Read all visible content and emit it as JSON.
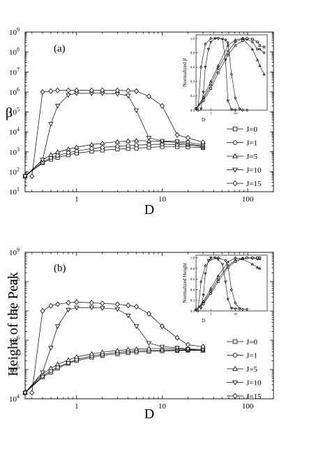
{
  "chart_data": [
    {
      "type": "line",
      "panel_label": "(a)",
      "xlabel": "D",
      "ylabel": "β",
      "x_scale": "log",
      "y_scale": "log",
      "xlim": [
        0.25,
        200
      ],
      "ylim": [
        10,
        1000000000
      ],
      "x_ticks": [
        1,
        10,
        100
      ],
      "x_tick_labels": [
        "1",
        "10",
        "100"
      ],
      "y_tick_exponents": [
        "1",
        "2",
        "3",
        "4",
        "5",
        "6",
        "7",
        "8",
        "9"
      ],
      "y_tick_base": "10",
      "legend_title": "",
      "legend_position": "right",
      "series": [
        {
          "name": "J=0",
          "marker": "square",
          "x": [
            0.25,
            0.4,
            0.5,
            0.6,
            0.8,
            1,
            1.5,
            2,
            3,
            4,
            5,
            7,
            10,
            15,
            20,
            30
          ],
          "y": [
            60,
            280,
            420,
            520,
            700,
            860,
            1050,
            1200,
            1350,
            1450,
            1500,
            1650,
            1800,
            1800,
            1750,
            1600
          ]
        },
        {
          "name": "J=1",
          "marker": "circle",
          "x": [
            0.25,
            0.4,
            0.5,
            0.6,
            0.8,
            1,
            1.5,
            2,
            3,
            4,
            5,
            7,
            10,
            15,
            20,
            30
          ],
          "y": [
            60,
            300,
            500,
            650,
            900,
            1100,
            1450,
            1650,
            1900,
            2050,
            2150,
            2300,
            2400,
            2300,
            2200,
            1800
          ]
        },
        {
          "name": "J=5",
          "marker": "triangle-up",
          "x": [
            0.25,
            0.4,
            0.5,
            0.6,
            0.8,
            1,
            1.5,
            2,
            3,
            4,
            5,
            7,
            10,
            15,
            20,
            30
          ],
          "y": [
            60,
            380,
            700,
            950,
            1350,
            1700,
            2300,
            2700,
            3200,
            3500,
            3600,
            3500,
            3300,
            2900,
            2500,
            1900
          ]
        },
        {
          "name": "J=10",
          "marker": "triangle-down",
          "x": [
            0.25,
            0.4,
            0.5,
            0.6,
            0.8,
            1,
            1.5,
            2,
            3,
            4,
            5,
            7,
            10,
            15,
            20,
            30
          ],
          "y": [
            60,
            400,
            25000,
            200000,
            700000,
            850000,
            850000,
            850000,
            800000,
            650000,
            120000,
            5000,
            3500,
            3300,
            3000,
            2200
          ]
        },
        {
          "name": "J=15",
          "marker": "diamond",
          "x": [
            0.3,
            0.4,
            0.5,
            0.6,
            0.8,
            1,
            1.5,
            2,
            3,
            4,
            5,
            7,
            10,
            15,
            20,
            30
          ],
          "y": [
            60,
            1000000,
            1100000,
            1200000,
            1200000,
            1200000,
            1200000,
            1200000,
            1200000,
            1150000,
            1100000,
            600000,
            200000,
            7000,
            5000,
            3000
          ]
        }
      ],
      "inset": {
        "ylabel": "Normalized β",
        "xlabel": "D",
        "x_ticks": [
          1,
          10
        ],
        "x_tick_labels": [
          "1",
          "10"
        ],
        "y_ticks": [
          0.0,
          0.2,
          0.4,
          0.6,
          0.8,
          1.0
        ],
        "y_tick_labels": [
          "0.0",
          "0.2",
          "0.4",
          "0.6",
          "0.8",
          "1.0"
        ],
        "xlim": [
          0.25,
          200
        ],
        "ylim": [
          0,
          1.05
        ],
        "series": [
          {
            "marker": "triangle-down",
            "x": [
              0.4,
              0.5,
              0.6,
              0.8,
              1,
              1.5,
              2,
              3,
              4,
              5,
              7,
              10
            ],
            "y": [
              0.02,
              0.25,
              0.6,
              0.85,
              0.95,
              1.0,
              1.0,
              0.99,
              0.7,
              0.13,
              0.01,
              0.0
            ]
          },
          {
            "marker": "diamond",
            "x": [
              0.3,
              0.4,
              0.6,
              1,
              2,
              4,
              5,
              7,
              10,
              15,
              20,
              30
            ],
            "y": [
              0.0,
              0.6,
              0.92,
              1.0,
              1.0,
              0.98,
              0.94,
              0.5,
              0.17,
              0.02,
              0.0,
              0.0
            ]
          },
          {
            "marker": "circle",
            "x": [
              0.25,
              0.5,
              1,
              2,
              5,
              10,
              20,
              30,
              50,
              80,
              100,
              150
            ],
            "y": [
              0.02,
              0.15,
              0.35,
              0.58,
              0.82,
              0.95,
              1.0,
              0.99,
              0.95,
              0.85,
              0.85,
              0.8
            ]
          },
          {
            "marker": "square",
            "x": [
              0.25,
              0.5,
              1,
              2,
              5,
              10,
              20,
              30,
              50,
              80,
              100,
              150
            ],
            "y": [
              0.02,
              0.13,
              0.3,
              0.52,
              0.77,
              0.9,
              0.97,
              1.0,
              0.99,
              0.95,
              0.9,
              0.88
            ]
          },
          {
            "marker": "triangle-up",
            "x": [
              0.25,
              0.5,
              1,
              2,
              5,
              10,
              20,
              50,
              80,
              100,
              150
            ],
            "y": [
              0.02,
              0.18,
              0.4,
              0.62,
              0.9,
              0.98,
              1.0,
              0.85,
              0.7,
              0.62,
              0.5
            ]
          }
        ]
      }
    },
    {
      "type": "line",
      "panel_label": "(b)",
      "xlabel": "D",
      "ylabel": "Height of the Peak",
      "x_scale": "log",
      "y_scale": "log",
      "xlim": [
        0.25,
        200
      ],
      "ylim": [
        10000,
        1000000000
      ],
      "x_ticks": [
        1,
        10,
        100
      ],
      "x_tick_labels": [
        "1",
        "10",
        "100"
      ],
      "y_tick_exponents": [
        "4",
        "5",
        "6",
        "7",
        "8",
        "9"
      ],
      "y_tick_base": "10",
      "legend_position": "right",
      "series": [
        {
          "name": "J=0",
          "marker": "square",
          "x": [
            0.25,
            0.4,
            0.5,
            0.6,
            0.8,
            1,
            1.5,
            2,
            3,
            4,
            5,
            7,
            10,
            15,
            20,
            30
          ],
          "y": [
            16000,
            55000,
            80000,
            110000,
            160000,
            200000,
            260000,
            300000,
            340000,
            370000,
            390000,
            410000,
            430000,
            440000,
            450000,
            450000
          ]
        },
        {
          "name": "J=1",
          "marker": "circle",
          "x": [
            0.25,
            0.4,
            0.5,
            0.6,
            0.8,
            1,
            1.5,
            2,
            3,
            4,
            5,
            7,
            10,
            15,
            20,
            30
          ],
          "y": [
            16000,
            60000,
            90000,
            120000,
            170000,
            220000,
            290000,
            330000,
            380000,
            410000,
            430000,
            450000,
            460000,
            460000,
            460000,
            450000
          ]
        },
        {
          "name": "J=5",
          "marker": "triangle-up",
          "x": [
            0.25,
            0.4,
            0.5,
            0.6,
            0.8,
            1,
            1.5,
            2,
            3,
            4,
            5,
            7,
            10,
            15,
            20,
            30
          ],
          "y": [
            16000,
            70000,
            110000,
            150000,
            210000,
            270000,
            340000,
            390000,
            440000,
            480000,
            500000,
            520000,
            520000,
            500000,
            480000,
            450000
          ]
        },
        {
          "name": "J=10",
          "marker": "triangle-down",
          "x": [
            0.25,
            0.4,
            0.5,
            0.6,
            0.8,
            1,
            1.5,
            2,
            3,
            4,
            5,
            7,
            10,
            15,
            20,
            30
          ],
          "y": [
            16000,
            80000,
            550000,
            3000000,
            11000000,
            13000000,
            13000000,
            12500000,
            11500000,
            7000000,
            3000000,
            800000,
            600000,
            550000,
            500000,
            480000
          ]
        },
        {
          "name": "J=15",
          "marker": "diamond",
          "x": [
            0.3,
            0.4,
            0.5,
            0.6,
            0.8,
            1,
            1.5,
            2,
            3,
            4,
            5,
            7,
            10,
            15,
            20,
            30
          ],
          "y": [
            16000,
            10000000,
            15000000,
            17000000,
            19000000,
            20000000,
            19000000,
            18000000,
            17000000,
            15500000,
            14000000,
            8000000,
            3000000,
            1200000,
            700000,
            600000
          ]
        }
      ],
      "inset": {
        "ylabel": "Normalized Height",
        "xlabel": "D",
        "x_ticks": [
          1,
          10
        ],
        "x_tick_labels": [
          "1",
          "10"
        ],
        "y_ticks": [
          0.0,
          0.2,
          0.4,
          0.6,
          0.8,
          1.0
        ],
        "y_tick_labels": [
          "0.0",
          "0.2",
          "0.4",
          "0.6",
          "0.8",
          "1.0"
        ],
        "xlim": [
          0.25,
          200
        ],
        "ylim": [
          0,
          1.05
        ],
        "series": [
          {
            "marker": "triangle-down",
            "x": [
              0.4,
              0.5,
              0.6,
              0.8,
              1,
              1.5,
              2,
              3,
              4,
              5,
              7,
              10,
              15
            ],
            "y": [
              0.05,
              0.3,
              0.7,
              0.95,
              1.0,
              1.0,
              0.97,
              0.88,
              0.55,
              0.22,
              0.05,
              0.04,
              0.04
            ]
          },
          {
            "marker": "diamond",
            "x": [
              0.3,
              0.4,
              0.6,
              1,
              2,
              4,
              5,
              7,
              10,
              15,
              20,
              30
            ],
            "y": [
              0.0,
              0.55,
              0.85,
              0.97,
              1.0,
              0.95,
              0.85,
              0.4,
              0.15,
              0.04,
              0.03,
              0.03
            ]
          },
          {
            "marker": "circle",
            "x": [
              0.25,
              0.5,
              1,
              2,
              5,
              10,
              20,
              30,
              50,
              80,
              100
            ],
            "y": [
              0.02,
              0.15,
              0.37,
              0.6,
              0.85,
              0.95,
              0.99,
              1.0,
              0.99,
              0.98,
              0.98
            ]
          },
          {
            "marker": "square",
            "x": [
              0.25,
              0.5,
              1,
              2,
              5,
              10,
              20,
              30,
              50,
              80,
              100
            ],
            "y": [
              0.02,
              0.13,
              0.33,
              0.55,
              0.82,
              0.93,
              0.98,
              1.0,
              1.0,
              1.0,
              1.0
            ]
          },
          {
            "marker": "triangle-up",
            "x": [
              0.25,
              0.5,
              1,
              2,
              5,
              10,
              20,
              50,
              80,
              100
            ],
            "y": [
              0.02,
              0.18,
              0.42,
              0.66,
              0.92,
              1.0,
              0.98,
              0.88,
              0.82,
              0.8
            ]
          }
        ]
      }
    }
  ]
}
